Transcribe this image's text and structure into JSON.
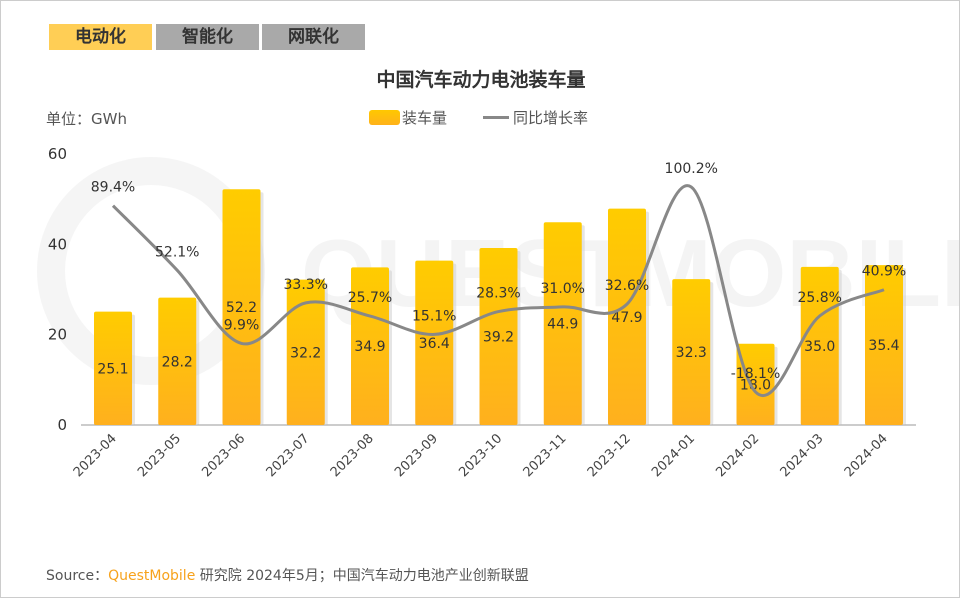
{
  "tabs": [
    {
      "label": "电动化",
      "active": true
    },
    {
      "label": "智能化",
      "active": false
    },
    {
      "label": "网联化",
      "active": false
    }
  ],
  "colors": {
    "tab_active": "#ffce55",
    "tab_inactive": "#a9a9a9",
    "bar": "#ffc300",
    "line": "#888888",
    "brand": "#f7a21b"
  },
  "unit_label": "单位：GWh",
  "source": {
    "prefix": "Source：",
    "brand": "QuestMobile",
    "suffix": "研究院 2024年5月；中国汽车动力电池产业创新联盟"
  },
  "watermark": "QUESTMOBILE",
  "chart_data": {
    "type": "bar+line",
    "title": "中国汽车动力电池装车量",
    "categories": [
      "2023-04",
      "2023-05",
      "2023-06",
      "2023-07",
      "2023-08",
      "2023-09",
      "2023-10",
      "2023-11",
      "2023-12",
      "2024-01",
      "2024-02",
      "2024-03",
      "2024-04"
    ],
    "series": [
      {
        "name": "装车量",
        "type": "bar",
        "values": [
          25.1,
          28.2,
          52.2,
          32.2,
          34.9,
          36.4,
          39.2,
          44.9,
          47.9,
          32.3,
          18.0,
          35.0,
          35.4
        ]
      },
      {
        "name": "同比增长率",
        "type": "line",
        "axis": "secondary",
        "unit": "%",
        "values": [
          89.4,
          52.1,
          9.9,
          33.3,
          25.7,
          15.1,
          28.3,
          31.0,
          32.6,
          100.2,
          -18.1,
          25.8,
          40.9
        ]
      }
    ],
    "ylim": [
      0,
      60
    ],
    "yticks": [
      0,
      20,
      40,
      60
    ],
    "grid": false,
    "legend": "top-center"
  }
}
